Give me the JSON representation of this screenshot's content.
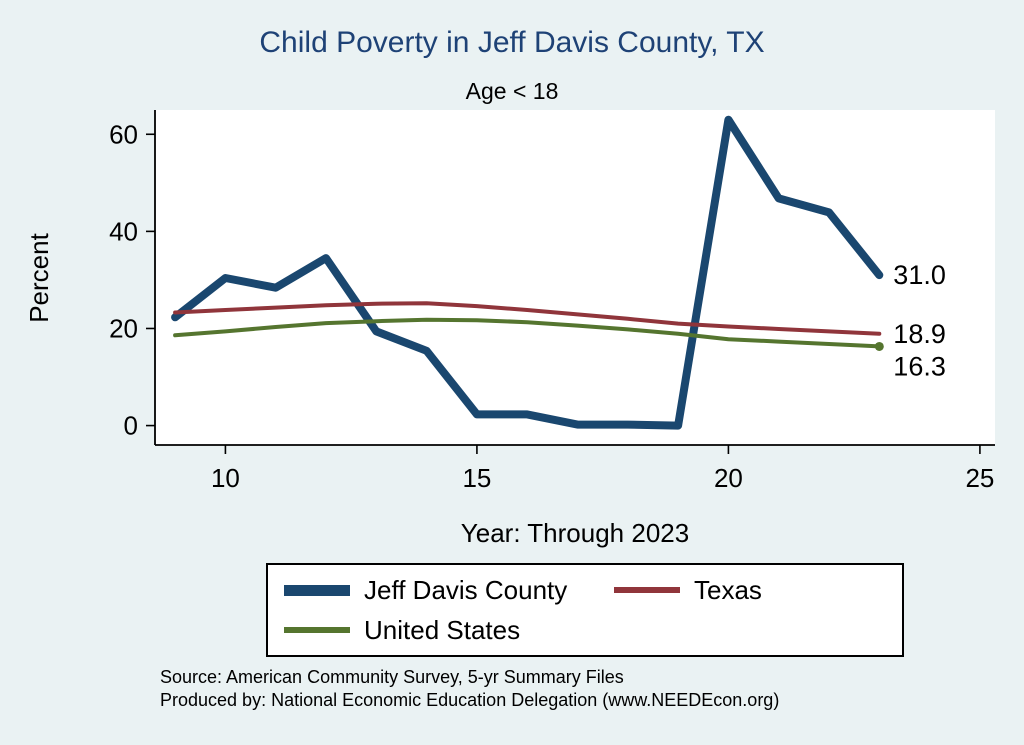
{
  "page": {
    "title": "Child Poverty in Jeff Davis County, TX",
    "subtitle": "Age < 18",
    "xlabel": "Year: Through 2023",
    "ylabel": "Percent",
    "source_line1": "Source: American Community Survey, 5-yr Summary Files",
    "source_line2": "Produced by: National Economic Education Delegation (www.NEEDEcon.org)"
  },
  "colors": {
    "background": "#eaf2f3",
    "title": "#1e4276",
    "plot_background": "#ffffff",
    "axis": "#000000"
  },
  "chart_data": {
    "type": "line",
    "title": "Child Poverty in Jeff Davis County, TX",
    "subtitle": "Age < 18",
    "xlabel": "Year: Through 2023",
    "ylabel": "Percent",
    "x": [
      9,
      10,
      11,
      12,
      13,
      14,
      15,
      16,
      17,
      18,
      19,
      20,
      21,
      22,
      23
    ],
    "xticks": [
      10,
      15,
      20,
      25
    ],
    "yticks": [
      0,
      20,
      40,
      60
    ],
    "xlim": [
      8.6,
      25.3
    ],
    "ylim": [
      -4,
      65
    ],
    "grid": false,
    "legend_position": "bottom",
    "series": [
      {
        "name": "Jeff Davis County",
        "color": "#1a476f",
        "width": 8,
        "values": [
          22.3,
          30.4,
          28.4,
          34.5,
          19.4,
          15.4,
          2.3,
          2.3,
          0.2,
          0.2,
          0.0,
          63.0,
          46.8,
          43.9,
          31.0
        ],
        "end_label": "31.0",
        "label_dy": 0,
        "end_marker": false
      },
      {
        "name": "Texas",
        "color": "#90353b",
        "width": 4,
        "values": [
          23.3,
          23.8,
          24.3,
          24.8,
          25.1,
          25.2,
          24.6,
          23.8,
          22.9,
          22.0,
          21.0,
          20.4,
          19.9,
          19.4,
          18.9
        ],
        "end_label": "18.9",
        "label_dy": 0,
        "end_marker": false
      },
      {
        "name": "United States",
        "color": "#55752f",
        "width": 4,
        "values": [
          18.6,
          19.4,
          20.3,
          21.1,
          21.5,
          21.8,
          21.7,
          21.3,
          20.6,
          19.8,
          18.9,
          17.8,
          17.3,
          16.8,
          16.3
        ],
        "end_label": "16.3",
        "label_dy": 20,
        "end_marker": true
      }
    ]
  }
}
